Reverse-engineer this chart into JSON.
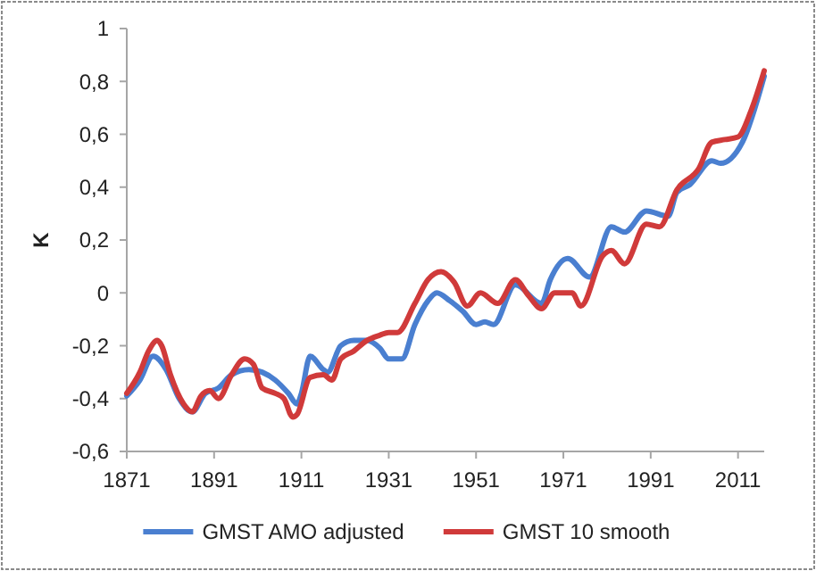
{
  "chart_data": {
    "type": "line",
    "ylabel": "K",
    "xlim": [
      1871,
      2017
    ],
    "xticks": [
      1871,
      1891,
      1911,
      1931,
      1951,
      1971,
      1991,
      2011
    ],
    "ylim": [
      -0.6,
      1
    ],
    "yticks": [
      {
        "value": -0.6,
        "label": "-0,6"
      },
      {
        "value": -0.4,
        "label": "-0,4"
      },
      {
        "value": -0.2,
        "label": "-0,2"
      },
      0,
      {
        "value": 0.2,
        "label": "0,2"
      },
      {
        "value": 0.4,
        "label": "0,4"
      },
      {
        "value": 0.6,
        "label": "0,6"
      },
      {
        "value": 0.8,
        "label": "0,8"
      },
      1
    ],
    "grid": false,
    "legend": "bottom",
    "marker": "none",
    "line_style": "solid",
    "series": [
      {
        "name": "GMST AMO adjusted",
        "color": "#4a7fd0",
        "x": [
          1871,
          1874,
          1877,
          1880,
          1883,
          1886,
          1889,
          1892,
          1895,
          1899,
          1902,
          1905,
          1908,
          1910,
          1911,
          1913,
          1916,
          1917,
          1920,
          1923,
          1926,
          1929,
          1931,
          1934,
          1937,
          1940,
          1942,
          1945,
          1948,
          1951,
          1953,
          1955,
          1960,
          1966,
          1968,
          1972,
          1977,
          1982,
          1985,
          1990,
          1995,
          1997,
          2000,
          2005,
          2007,
          2012,
          2017
        ],
        "values": [
          -0.39,
          -0.33,
          -0.24,
          -0.29,
          -0.4,
          -0.45,
          -0.38,
          -0.36,
          -0.31,
          -0.29,
          -0.3,
          -0.33,
          -0.38,
          -0.42,
          -0.38,
          -0.24,
          -0.29,
          -0.3,
          -0.2,
          -0.18,
          -0.18,
          -0.21,
          -0.25,
          -0.25,
          -0.12,
          -0.03,
          0,
          -0.03,
          -0.07,
          -0.12,
          -0.11,
          -0.12,
          0.03,
          -0.04,
          0.05,
          0.13,
          0.06,
          0.25,
          0.23,
          0.31,
          0.29,
          0.38,
          0.41,
          0.5,
          0.49,
          0.57,
          0.82
        ]
      },
      {
        "name": "GMST 10 smooth",
        "color": "#d03a3a",
        "x": [
          1871,
          1874,
          1876,
          1878,
          1879,
          1881,
          1884,
          1886,
          1888,
          1890,
          1892,
          1895,
          1898,
          1900,
          1902,
          1905,
          1907,
          1909,
          1910,
          1913,
          1916,
          1918,
          1920,
          1923,
          1926,
          1929,
          1931,
          1933,
          1937,
          1940,
          1943,
          1946,
          1949,
          1952,
          1956,
          1960,
          1963,
          1966,
          1969,
          1973,
          1975,
          1980,
          1982,
          1985,
          1990,
          1993,
          1997,
          2002,
          2005,
          2008,
          2011,
          2014,
          2017
        ],
        "values": [
          -0.38,
          -0.3,
          -0.22,
          -0.18,
          -0.2,
          -0.31,
          -0.42,
          -0.45,
          -0.39,
          -0.37,
          -0.4,
          -0.31,
          -0.25,
          -0.27,
          -0.36,
          -0.38,
          -0.4,
          -0.47,
          -0.46,
          -0.32,
          -0.31,
          -0.33,
          -0.25,
          -0.22,
          -0.18,
          -0.16,
          -0.15,
          -0.15,
          -0.04,
          0.05,
          0.08,
          0.04,
          -0.05,
          0,
          -0.04,
          0.05,
          -0.01,
          -0.06,
          0,
          0,
          -0.05,
          0.14,
          0.16,
          0.11,
          0.26,
          0.25,
          0.39,
          0.47,
          0.57,
          0.58,
          0.59,
          0.69,
          0.84
        ]
      }
    ]
  }
}
